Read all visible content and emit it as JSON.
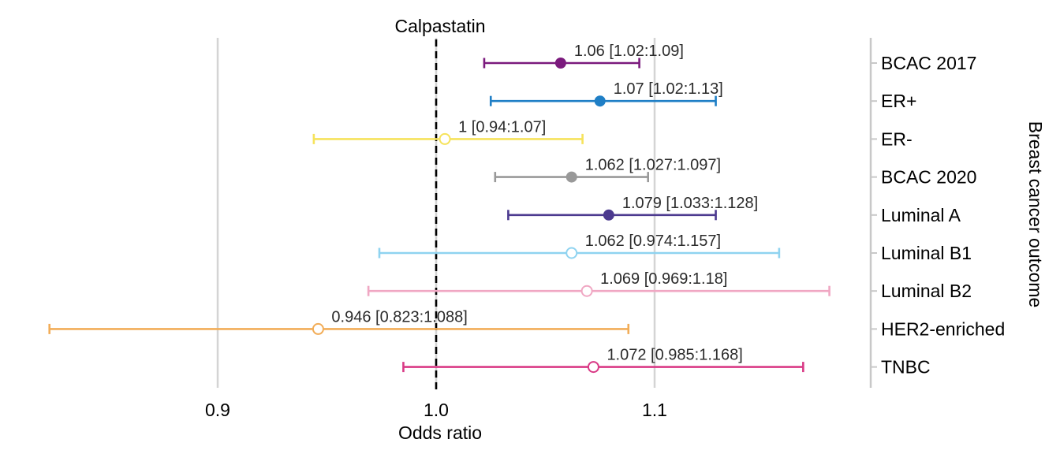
{
  "chart_data": {
    "type": "forest",
    "title": "Calpastatin",
    "xlabel": "Odds ratio",
    "ylabel": "Breast cancer outcome",
    "xlim": [
      0.8,
      1.19
    ],
    "xticks": [
      {
        "value": 0.9,
        "label": "0.9"
      },
      {
        "value": 1.0,
        "label": "1.0"
      },
      {
        "value": 1.1,
        "label": "1.1"
      }
    ],
    "reference_line": 1.0,
    "grid": "vertical",
    "rows": [
      {
        "category": "BCAC 2017",
        "or": 1.057,
        "lo": 1.022,
        "hi": 1.093,
        "label": "1.06 [1.02:1.09]",
        "color": "#7b1a7d",
        "filled": true
      },
      {
        "category": "ER+",
        "or": 1.075,
        "lo": 1.025,
        "hi": 1.128,
        "label": "1.07 [1.02:1.13]",
        "color": "#1f7fc6",
        "filled": true
      },
      {
        "category": "ER-",
        "or": 1.004,
        "lo": 0.944,
        "hi": 1.067,
        "label": "1 [0.94:1.07]",
        "color": "#f6e35c",
        "filled": false
      },
      {
        "category": "BCAC 2020",
        "or": 1.062,
        "lo": 1.027,
        "hi": 1.097,
        "label": "1.062 [1.027:1.097]",
        "color": "#999999",
        "filled": true
      },
      {
        "category": "Luminal A",
        "or": 1.079,
        "lo": 1.033,
        "hi": 1.128,
        "label": "1.079 [1.033:1.128]",
        "color": "#4c3a8f",
        "filled": true
      },
      {
        "category": "Luminal B1",
        "or": 1.062,
        "lo": 0.974,
        "hi": 1.157,
        "label": "1.062 [0.974:1.157]",
        "color": "#8fd3f0",
        "filled": false
      },
      {
        "category": "Luminal B2",
        "or": 1.069,
        "lo": 0.969,
        "hi": 1.18,
        "label": "1.069 [0.969:1.18]",
        "color": "#f0a7c3",
        "filled": false
      },
      {
        "category": "HER2-enriched",
        "or": 0.946,
        "lo": 0.823,
        "hi": 1.088,
        "label": "0.946 [0.823:1.088]",
        "color": "#f2ad58",
        "filled": false
      },
      {
        "category": "TNBC",
        "or": 1.072,
        "lo": 0.985,
        "hi": 1.168,
        "label": "1.072 [0.985:1.168]",
        "color": "#d93a86",
        "filled": false
      }
    ]
  }
}
